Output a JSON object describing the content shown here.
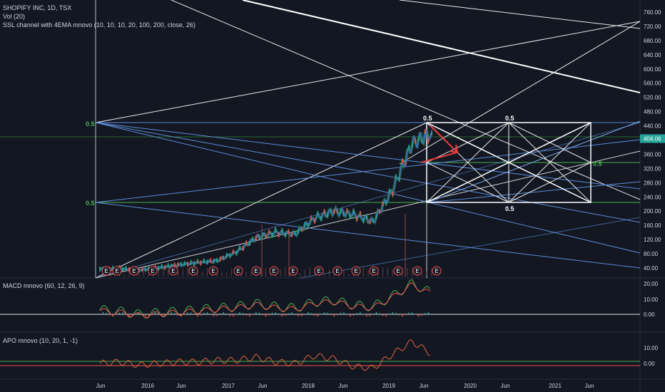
{
  "header": {
    "symbol_line": "SHOPIFY INC, 1D, TSX",
    "volume_line": "Vol (20)",
    "ssl_line": "SSL channel with 4EMA mnovo (10, 10, 10, 20, 100, 200, close, 26)",
    "macd_line": "MACD mnovo (60, 12, 26, 9)",
    "apo_line": "APO mnovo (10, 20, 1, -1)"
  },
  "colors": {
    "background": "#131722",
    "axis_text": "#d1d4dc",
    "grid_line": "#2a2e39",
    "price_badge": "#26a69a",
    "fib_green": "#4caf50",
    "blue_lines": "#5b8bd6",
    "white_lines": "#ffffff",
    "up_candle": "#26a69a",
    "down_candle": "#ef5350",
    "macd_line": "#4caf50",
    "signal_line": "#ef5350",
    "apo_line": "#e0643c",
    "earnings_marker": "#ef5350"
  },
  "price_axis": {
    "ticks": [
      "760.00",
      "720.00",
      "680.00",
      "640.00",
      "600.00",
      "560.00",
      "520.00",
      "480.00",
      "440.00",
      "404.06",
      "360.00",
      "320.00",
      "280.00",
      "240.00",
      "200.00",
      "160.00",
      "120.00",
      "80.00",
      "40.00"
    ],
    "current_price": "404.06"
  },
  "macd_axis": {
    "ticks": [
      "20.00",
      "10.00",
      "0.00"
    ]
  },
  "apo_axis": {
    "ticks": [
      "10.00",
      "0.00"
    ]
  },
  "time_axis": {
    "ticks": [
      "Jun",
      "2016",
      "Jun",
      "2017",
      "Jun",
      "2018",
      "Jun",
      "2019",
      "Jun",
      "2020",
      "Jun",
      "2021",
      "Jun"
    ]
  },
  "annotations": {
    "fib_left_top": "0.5",
    "fib_left_bottom": "0.5",
    "box_top_left": "0.5",
    "box_top_mid": "0.5",
    "box_bottom_mid": "0.5",
    "box_right": "0.5",
    "earnings_marker": "E"
  },
  "chart_data": {
    "type": "line",
    "title": "SHOPIFY INC, 1D, TSX",
    "x": [
      "2015-06",
      "2015-09",
      "2015-12",
      "2016-03",
      "2016-06",
      "2016-09",
      "2016-12",
      "2017-03",
      "2017-06",
      "2017-09",
      "2017-12",
      "2018-03",
      "2018-06",
      "2018-09",
      "2018-12",
      "2019-03",
      "2019-06",
      "2019-07"
    ],
    "series": [
      {
        "values": [
          36,
          38,
          34,
          40,
          48,
          55,
          60,
          85,
          125,
          140,
          135,
          180,
          200,
          190,
          170,
          260,
          390,
          420
        ]
      }
    ],
    "price_ylim": [
      20,
      780
    ],
    "macd": [
      3,
      2,
      0,
      1,
      2,
      3,
      4,
      5,
      7,
      5,
      4,
      8,
      9,
      6,
      5,
      12,
      20,
      14
    ],
    "apo": [
      0,
      1,
      -1,
      0,
      1,
      1,
      2,
      2,
      4,
      1,
      0,
      5,
      3,
      -2,
      -3,
      6,
      14,
      6
    ],
    "earnings_count": 17
  }
}
